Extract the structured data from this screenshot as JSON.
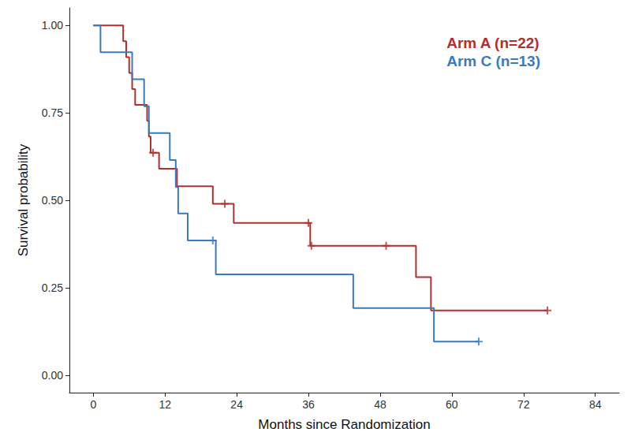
{
  "chart_data": {
    "type": "line",
    "line_style": "step",
    "x_label": "Months since Randomization",
    "y_label": "Survival probability",
    "xlim": [
      -4,
      88
    ],
    "xticks": [
      0,
      12,
      24,
      36,
      48,
      60,
      72,
      84
    ],
    "ylim": [
      -0.05,
      1.05
    ],
    "yticks": [
      {
        "value": 0,
        "label": "0.00"
      },
      {
        "value": 0.25,
        "label": "0.25"
      },
      {
        "value": 0.5,
        "label": "0.50"
      },
      {
        "value": 0.75,
        "label": "0.75"
      },
      {
        "value": 1,
        "label": "1.00"
      }
    ],
    "grid": false,
    "legend": "top-right",
    "series": [
      {
        "name": "Arm A (n=22)",
        "color": "#b2302b",
        "x": [
          0,
          5,
          5.5,
          6,
          6.5,
          7,
          9,
          9.3,
          9.6,
          11,
          14,
          20,
          23.5,
          36.3,
          54,
          56.5,
          76
        ],
        "values": [
          1,
          0.955,
          0.909,
          0.864,
          0.818,
          0.773,
          0.727,
          0.682,
          0.636,
          0.59,
          0.54,
          0.49,
          0.435,
          0.37,
          0.28,
          0.185,
          0.185
        ],
        "censor_x": [
          10,
          22,
          36,
          36.5,
          49,
          76
        ],
        "censor_values": [
          0.636,
          0.49,
          0.435,
          0.37,
          0.37,
          0.185
        ]
      },
      {
        "name": "Arm C (n=13)",
        "color": "#3a7bbf",
        "x": [
          0,
          1.2,
          6.5,
          8.5,
          9.3,
          12.8,
          13.8,
          14.2,
          15.8,
          20.5,
          43.5,
          57,
          64.5
        ],
        "values": [
          1,
          0.923,
          0.846,
          0.769,
          0.692,
          0.615,
          0.538,
          0.462,
          0.385,
          0.288,
          0.192,
          0.096,
          0.096
        ],
        "censor_x": [
          20,
          64.5
        ],
        "censor_values": [
          0.385,
          0.096
        ]
      }
    ]
  }
}
